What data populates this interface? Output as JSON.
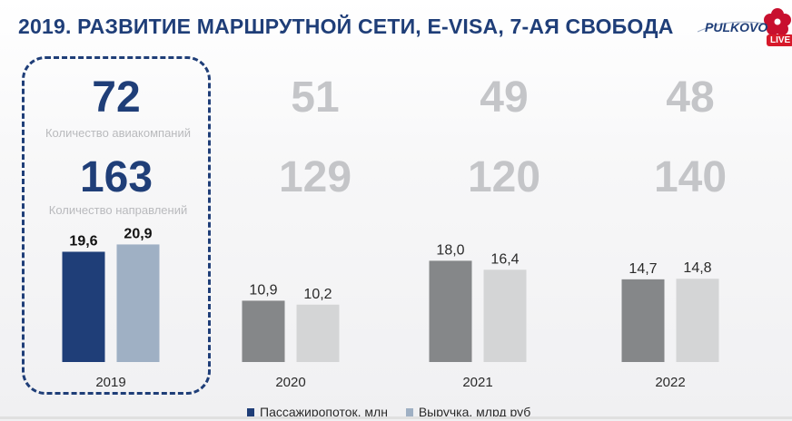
{
  "title": "2019. РАЗВИТИЕ МАРШРУТНОЙ СЕТИ, E-VISA, 7-АЯ СВОБОДА",
  "logo": {
    "text": "PULKOVO",
    "badge": "LIVE",
    "icon": "pulkovo-flower-logo"
  },
  "labels": {
    "airlines": "Количество авиакомпаний",
    "destinations": "Количество направлений"
  },
  "years": [
    {
      "year": "2019",
      "airlines": "72",
      "destinations": "163",
      "highlighted": true
    },
    {
      "year": "2020",
      "airlines": "51",
      "destinations": "129",
      "highlighted": false
    },
    {
      "year": "2021",
      "airlines": "49",
      "destinations": "120",
      "highlighted": false
    },
    {
      "year": "2022",
      "airlines": "48",
      "destinations": "140",
      "highlighted": false
    }
  ],
  "colors": {
    "title": "#1f3e78",
    "passengers_2019": "#1f3e78",
    "revenue_2019": "#9fb0c4",
    "passengers_other": "#858789",
    "revenue_other": "#d4d5d6"
  },
  "legend": {
    "passengers": "Пассажиропоток, млн",
    "revenue": "Выручка, млрд руб"
  },
  "chart_data": {
    "type": "bar",
    "categories": [
      "2019",
      "2020",
      "2021",
      "2022"
    ],
    "series": [
      {
        "name": "Пассажиропоток, млн",
        "values": [
          19.6,
          10.9,
          18.0,
          14.7
        ],
        "labels": [
          "19,6",
          "10,9",
          "18,0",
          "14,7"
        ]
      },
      {
        "name": "Выручка, млрд руб",
        "values": [
          20.9,
          10.2,
          16.4,
          14.8
        ],
        "labels": [
          "20,9",
          "10,2",
          "16,4",
          "14,8"
        ]
      }
    ],
    "ylim": [
      0,
      25
    ],
    "grid": false,
    "legend_position": "bottom"
  },
  "video_progress": 0
}
